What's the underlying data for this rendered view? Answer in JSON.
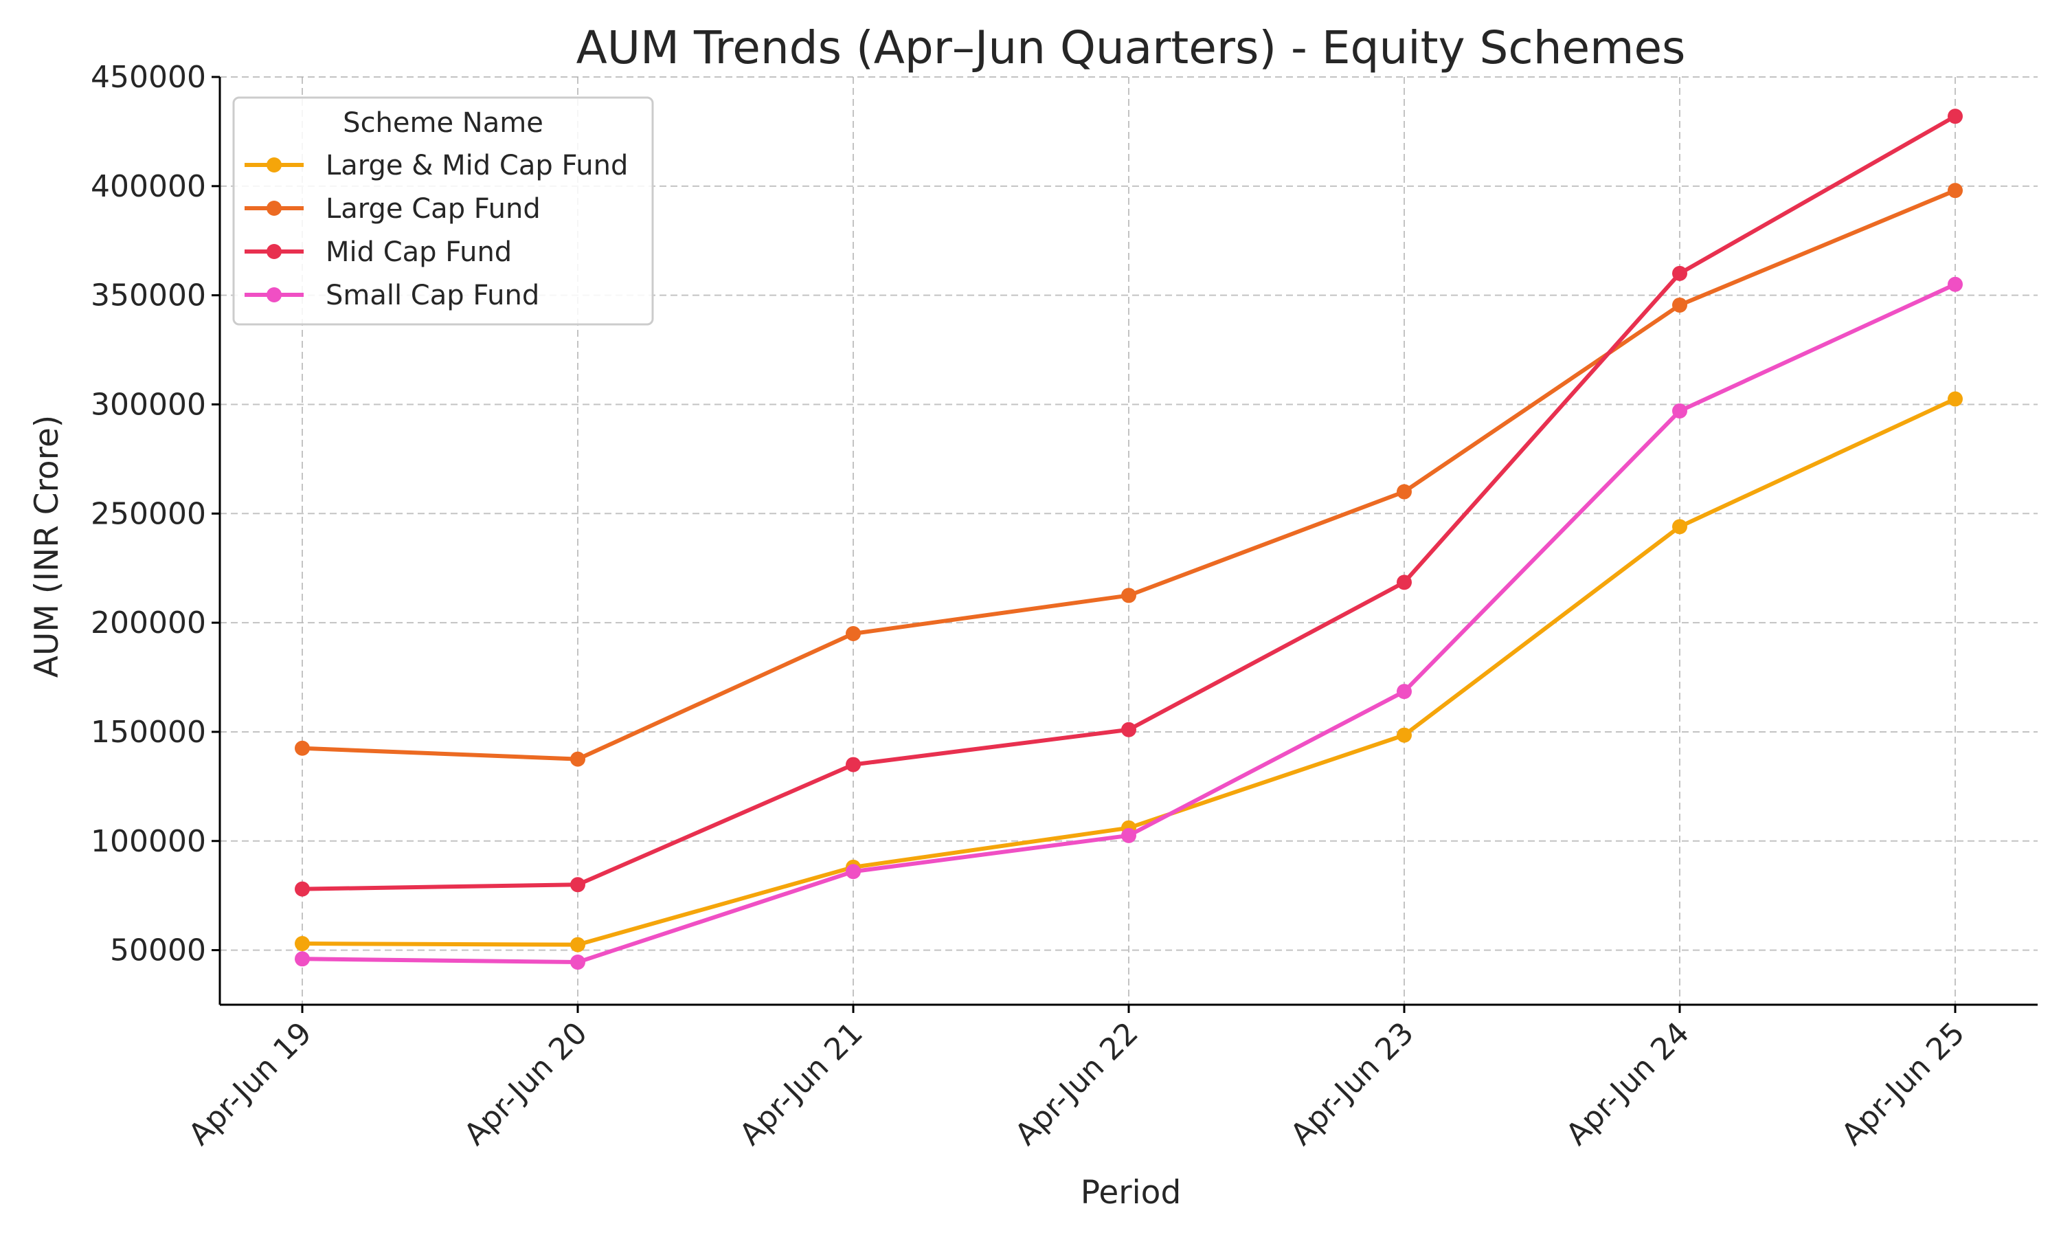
{
  "chart_data": {
    "type": "line",
    "title": "AUM Trends (Apr–Jun Quarters) - Equity Schemes",
    "xlabel": "Period",
    "ylabel": "AUM (INR Crore)",
    "categories": [
      "Apr-Jun 19",
      "Apr-Jun 20",
      "Apr-Jun 21",
      "Apr-Jun 22",
      "Apr-Jun 23",
      "Apr-Jun 24",
      "Apr-Jun 25"
    ],
    "ylim": [
      25000,
      450000
    ],
    "yticks": [
      50000,
      100000,
      150000,
      200000,
      250000,
      300000,
      350000,
      400000,
      450000
    ],
    "grid": true,
    "legend": {
      "title": "Scheme Name",
      "position": "top-left"
    },
    "series": [
      {
        "name": "Large & Mid Cap Fund",
        "color": "#f5a50a",
        "values": [
          53000,
          52500,
          88000,
          106000,
          148500,
          244000,
          302500
        ]
      },
      {
        "name": "Large Cap Fund",
        "color": "#ec6a22",
        "values": [
          142500,
          137500,
          195000,
          212500,
          260000,
          345500,
          398000
        ]
      },
      {
        "name": "Mid Cap Fund",
        "color": "#e8304f",
        "values": [
          78000,
          80000,
          135000,
          151000,
          218500,
          360000,
          432000
        ]
      },
      {
        "name": "Small Cap Fund",
        "color": "#f04fc4",
        "values": [
          46000,
          44500,
          86000,
          102500,
          168500,
          297000,
          355000
        ]
      }
    ]
  }
}
